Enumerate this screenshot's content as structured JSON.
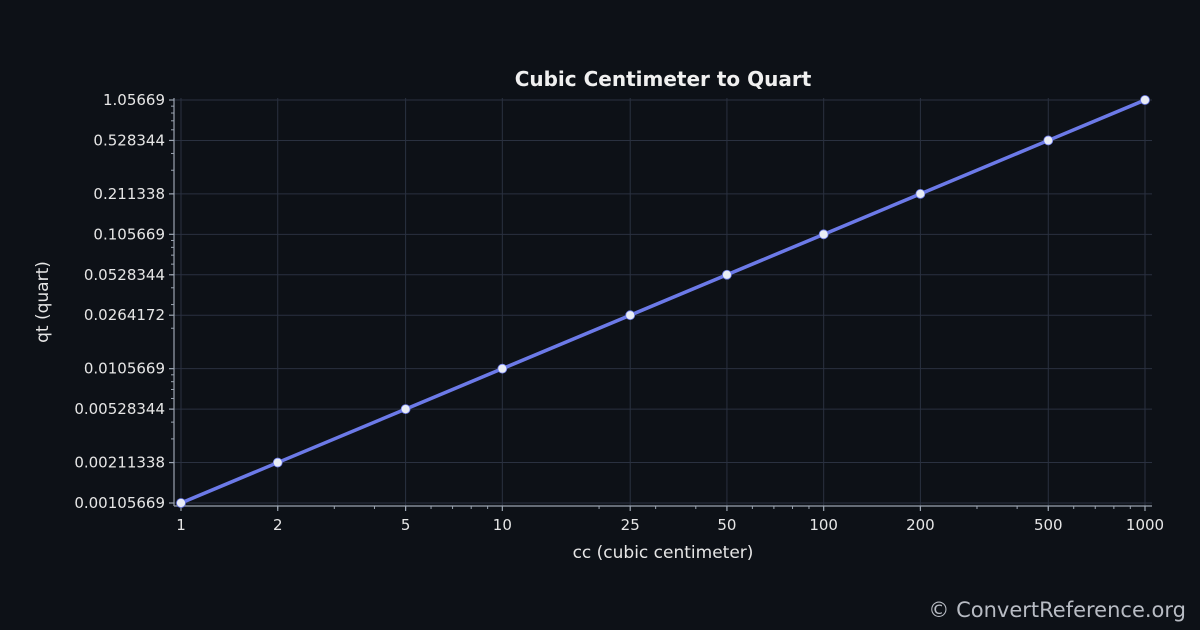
{
  "chart_data": {
    "type": "line",
    "title": "Cubic Centimeter to Quart",
    "xlabel": "cc (cubic centimeter)",
    "ylabel": "qt (quart)",
    "x_scale": "log",
    "y_scale": "log",
    "xlim": [
      1,
      1000
    ],
    "ylim": [
      0.00105669,
      1.05669
    ],
    "grid": true,
    "x_ticks": [
      "1",
      "2",
      "5",
      "10",
      "25",
      "50",
      "100",
      "200",
      "500",
      "1000"
    ],
    "y_ticks": [
      "0.00105669",
      "0.00211338",
      "0.00528344",
      "0.0105669",
      "0.0264172",
      "0.0528344",
      "0.105669",
      "0.211338",
      "0.528344",
      "1.05669"
    ],
    "series": [
      {
        "x": [
          1,
          2,
          5,
          10,
          25,
          50,
          100,
          200,
          500,
          1000
        ],
        "y": [
          0.00105669,
          0.00211338,
          0.00528344,
          0.0105669,
          0.0264172,
          0.0528344,
          0.105669,
          0.211338,
          0.528344,
          1.05669
        ],
        "color": "#6c7ae8",
        "marker_color": "#e8ecf5"
      }
    ]
  },
  "colors": {
    "background": "#0d1117",
    "grid": "#2a3140",
    "axis": "#9aa3b0"
  },
  "watermark": "© ConvertReference.org"
}
